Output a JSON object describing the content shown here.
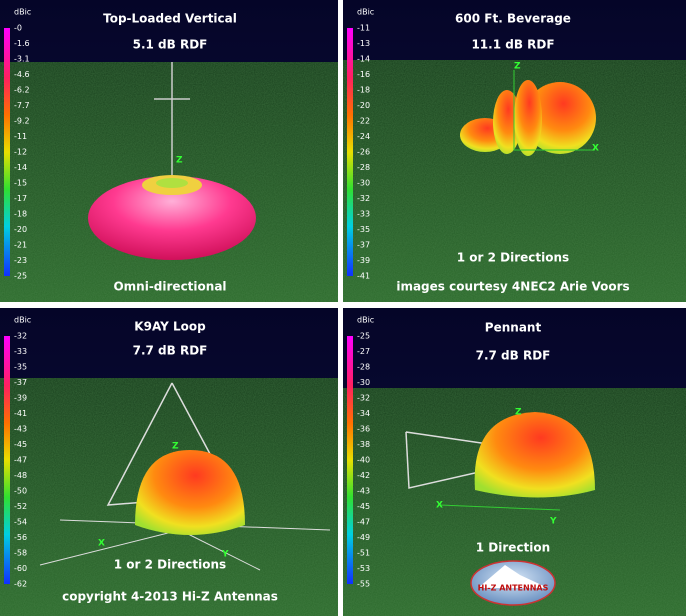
{
  "panels": [
    {
      "title": "Top-Loaded Vertical",
      "rdf": "5.1 dB RDF",
      "unit": "dBic",
      "scale": [
        "-0",
        "-1.6",
        "-3.1",
        "-4.6",
        "-6.2",
        "-7.7",
        "-9.2",
        "-11",
        "-12",
        "-14",
        "-15",
        "-17",
        "-18",
        "-20",
        "-21",
        "-23",
        "-25"
      ],
      "caption": "Omni-directional",
      "axes": [
        "Z"
      ]
    },
    {
      "title": "600 Ft. Beverage",
      "rdf": "11.1 dB RDF",
      "unit": "dBic",
      "scale": [
        "-11",
        "-13",
        "-14",
        "-16",
        "-18",
        "-20",
        "-22",
        "-24",
        "-26",
        "-28",
        "-30",
        "-32",
        "-33",
        "-35",
        "-37",
        "-39",
        "-41"
      ],
      "caption": "1 or 2 Directions",
      "credit": "images courtesy 4NEC2 Arie Voors",
      "axes": [
        "Z",
        "X"
      ]
    },
    {
      "title": "K9AY Loop",
      "rdf": "7.7 dB RDF",
      "unit": "dBic",
      "scale": [
        "-32",
        "-33",
        "-35",
        "-37",
        "-39",
        "-41",
        "-43",
        "-45",
        "-47",
        "-48",
        "-50",
        "-52",
        "-54",
        "-56",
        "-58",
        "-60",
        "-62"
      ],
      "caption": "1 or 2 Directions",
      "credit": "copyright 4-2013 Hi-Z Antennas",
      "axes": [
        "Z",
        "X",
        "Y"
      ]
    },
    {
      "title": "Pennant",
      "rdf": "7.7 dB RDF",
      "unit": "dBic",
      "scale": [
        "-25",
        "-27",
        "-28",
        "-30",
        "-32",
        "-34",
        "-36",
        "-38",
        "-40",
        "-42",
        "-43",
        "-45",
        "-47",
        "-49",
        "-51",
        "-53",
        "-55"
      ],
      "caption": "1 Direction",
      "logo": "HI-Z ANTENNAS",
      "axes": [
        "Z",
        "X",
        "Y"
      ]
    }
  ]
}
